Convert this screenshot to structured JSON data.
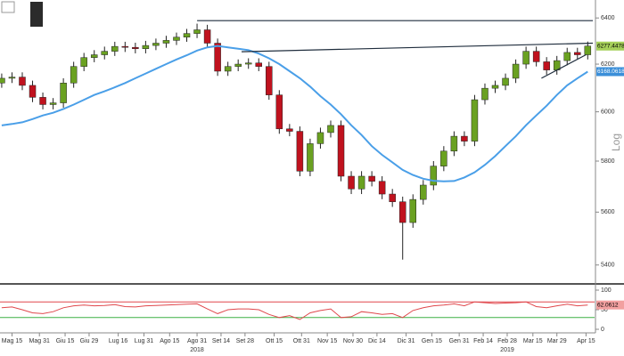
{
  "chart_data": {
    "type": "candlestick",
    "x": [
      "2018-05-09",
      "2018-05-15",
      "2018-05-21",
      "2018-05-27",
      "2018-06-02",
      "2018-06-08",
      "2018-06-14",
      "2018-06-20",
      "2018-06-26",
      "2018-07-02",
      "2018-07-08",
      "2018-07-14",
      "2018-07-20",
      "2018-07-26",
      "2018-08-01",
      "2018-08-07",
      "2018-08-13",
      "2018-08-19",
      "2018-08-25",
      "2018-08-31",
      "2018-09-06",
      "2018-09-12",
      "2018-09-18",
      "2018-09-24",
      "2018-09-30",
      "2018-10-06",
      "2018-10-12",
      "2018-10-18",
      "2018-10-24",
      "2018-10-30",
      "2018-11-05",
      "2018-11-11",
      "2018-11-17",
      "2018-11-23",
      "2018-11-29",
      "2018-12-05",
      "2018-12-11",
      "2018-12-17",
      "2018-12-23",
      "2018-12-29",
      "2019-01-04",
      "2019-01-10",
      "2019-01-16",
      "2019-01-22",
      "2019-01-28",
      "2019-02-03",
      "2019-02-09",
      "2019-02-15",
      "2019-02-21",
      "2019-02-27",
      "2019-03-05",
      "2019-03-11",
      "2019-03-17",
      "2019-03-23",
      "2019-03-29",
      "2019-04-04",
      "2019-04-10",
      "2019-04-16"
    ],
    "open": [
      6120,
      6140,
      6145,
      6110,
      6060,
      6030,
      6037,
      6120,
      6190,
      6228,
      6240,
      6255,
      6276,
      6272,
      6266,
      6280,
      6290,
      6302,
      6316,
      6332,
      6348,
      6290,
      6170,
      6190,
      6200,
      6205,
      6190,
      6070,
      5930,
      5920,
      5760,
      5870,
      5915,
      5944,
      5740,
      5690,
      5740,
      5720,
      5670,
      5640,
      5560,
      5649,
      5705,
      5780,
      5840,
      5900,
      5880,
      6050,
      6098,
      6110,
      6140,
      6200,
      6255,
      6210,
      6175,
      6215,
      6250,
      6240
    ],
    "high": [
      6160,
      6165,
      6165,
      6130,
      6080,
      6057,
      6140,
      6210,
      6248,
      6260,
      6275,
      6296,
      6296,
      6292,
      6300,
      6310,
      6322,
      6336,
      6352,
      6375,
      6370,
      6310,
      6210,
      6220,
      6225,
      6225,
      6210,
      6090,
      5950,
      5940,
      5890,
      5935,
      5964,
      5964,
      5760,
      5760,
      5760,
      5740,
      5690,
      5660,
      5669,
      5725,
      5800,
      5860,
      5920,
      5920,
      6070,
      6118,
      6130,
      6160,
      6220,
      6275,
      6275,
      6230,
      6235,
      6270,
      6270,
      6297
    ],
    "low": [
      6100,
      6120,
      6090,
      6040,
      6010,
      6010,
      6017,
      6100,
      6170,
      6208,
      6220,
      6235,
      6252,
      6246,
      6246,
      6260,
      6270,
      6282,
      6296,
      6312,
      6270,
      6150,
      6150,
      6170,
      6180,
      6170,
      6050,
      5910,
      5900,
      5740,
      5740,
      5850,
      5895,
      5720,
      5670,
      5670,
      5700,
      5650,
      5620,
      5420,
      5540,
      5629,
      5685,
      5760,
      5820,
      5860,
      5860,
      6030,
      6078,
      6090,
      6120,
      6180,
      6190,
      6155,
      6155,
      6195,
      6220,
      6220
    ],
    "close": [
      6140,
      6145,
      6110,
      6060,
      6030,
      6037,
      6120,
      6190,
      6228,
      6240,
      6255,
      6276,
      6272,
      6266,
      6280,
      6290,
      6302,
      6316,
      6332,
      6348,
      6290,
      6170,
      6190,
      6200,
      6205,
      6190,
      6070,
      5930,
      5920,
      5760,
      5870,
      5915,
      5944,
      5740,
      5690,
      5740,
      5720,
      5670,
      5640,
      5560,
      5649,
      5705,
      5780,
      5840,
      5900,
      5880,
      6050,
      6098,
      6110,
      6140,
      6200,
      6255,
      6210,
      6175,
      6215,
      6250,
      6240,
      6277.4478
    ],
    "up_color": "#6aa121",
    "down_color": "#c0121e",
    "overlays": [
      {
        "color": "#4a9fe8",
        "values": [
          5944,
          5950,
          5957,
          5970,
          5985,
          5996,
          6012,
          6030,
          6050,
          6070,
          6085,
          6102,
          6120,
          6140,
          6160,
          6180,
          6200,
          6220,
          6238,
          6258,
          6272,
          6278,
          6272,
          6266,
          6260,
          6245,
          6225,
          6200,
          6170,
          6140,
          6105,
          6065,
          6030,
          5990,
          5945,
          5905,
          5860,
          5825,
          5795,
          5765,
          5745,
          5730,
          5722,
          5720,
          5721,
          5735,
          5755,
          5785,
          5820,
          5860,
          5900,
          5945,
          5985,
          6025,
          6070,
          6110,
          6140,
          6168.0618
        ]
      }
    ],
    "trendlines": [
      {
        "color": "#1f2d3d",
        "x": [
          "2018-08-31",
          "2019-04-19"
        ],
        "y": [
          6388,
          6388
        ]
      },
      {
        "color": "#1f2d3d",
        "x": [
          "2018-09-26",
          "2019-04-19"
        ],
        "y": [
          6253,
          6290
        ]
      },
      {
        "color": "#1f2d3d",
        "x": [
          "2019-03-20",
          "2019-04-15"
        ],
        "y": [
          6140,
          6240
        ]
      }
    ],
    "xlim": [
      "2018-05-08",
      "2019-04-20"
    ],
    "ylim": [
      5340,
      6440
    ],
    "log": true,
    "scale_label": "Log",
    "yticks": [
      5400,
      5600,
      5800,
      6000,
      6200,
      6400
    ],
    "xticks": [
      {
        "value": "2018-05-15",
        "label": "Mag 15"
      },
      {
        "value": "2018-05-31",
        "label": "Mag 31"
      },
      {
        "value": "2018-06-15",
        "label": "Giu 15"
      },
      {
        "value": "2018-06-29",
        "label": "Giu 29"
      },
      {
        "value": "2018-07-16",
        "label": "Lug 16"
      },
      {
        "value": "2018-07-31",
        "label": "Lug 31"
      },
      {
        "value": "2018-08-15",
        "label": "Ago 15"
      },
      {
        "value": "2018-08-31",
        "label": "Ago 31"
      },
      {
        "value": "2018-09-14",
        "label": "Set 14"
      },
      {
        "value": "2018-09-28",
        "label": "Set 28"
      },
      {
        "value": "2018-10-15",
        "label": "Ott 15"
      },
      {
        "value": "2018-10-31",
        "label": "Ott 31"
      },
      {
        "value": "2018-11-15",
        "label": "Nov 15"
      },
      {
        "value": "2018-11-30",
        "label": "Nov 30"
      },
      {
        "value": "2018-12-14",
        "label": "Dic 14"
      },
      {
        "value": "2018-12-31",
        "label": "Dic 31"
      },
      {
        "value": "2019-01-15",
        "label": "Gen 15"
      },
      {
        "value": "2019-01-31",
        "label": "Gen 31"
      },
      {
        "value": "2019-02-14",
        "label": "Feb 14"
      },
      {
        "value": "2019-02-28",
        "label": "Feb 28"
      },
      {
        "value": "2019-03-15",
        "label": "Mar 15"
      },
      {
        "value": "2019-03-29",
        "label": "Mar 29"
      },
      {
        "value": "2019-04-15",
        "label": "Apr 15"
      }
    ],
    "years": [
      {
        "value": "2018-08-31",
        "label": "2018"
      },
      {
        "value": "2019-02-28",
        "label": "2019"
      }
    ],
    "indicator": {
      "color": "#e0474c",
      "values": [
        55,
        57,
        50,
        42,
        40,
        45,
        55,
        60,
        62,
        60,
        61,
        63,
        58,
        57,
        60,
        61,
        62,
        63,
        64,
        65,
        52,
        40,
        50,
        52,
        52,
        50,
        38,
        30,
        35,
        25,
        42,
        48,
        52,
        30,
        32,
        45,
        42,
        38,
        40,
        30,
        48,
        55,
        60,
        62,
        65,
        60,
        70,
        68,
        66,
        67,
        68,
        70,
        58,
        55,
        60,
        64,
        60,
        62.0612
      ],
      "ylim": [
        0,
        100
      ],
      "yticks": [
        100,
        50,
        0
      ],
      "levels": [
        {
          "value": 70,
          "color": "#e0474c"
        },
        {
          "value": 30,
          "color": "#3cb043"
        }
      ]
    }
  }
}
